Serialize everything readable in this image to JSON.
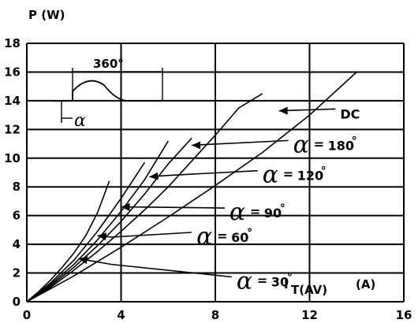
{
  "chart_data": {
    "type": "line",
    "ylabel": "P (W)",
    "xlabel_main": "I",
    "xlabel_sub": "T(AV)",
    "xlabel_unit": "(A)",
    "xlim": [
      0,
      16
    ],
    "ylim": [
      0,
      18
    ],
    "x_ticks": [
      "0",
      "4",
      "8",
      "12",
      "16"
    ],
    "y_ticks": [
      "0",
      "2",
      "4",
      "6",
      "8",
      "10",
      "12",
      "14",
      "16",
      "18"
    ],
    "grid": true,
    "series": [
      {
        "name": "30",
        "points": [
          [
            0,
            0
          ],
          [
            0.5,
            0.7
          ],
          [
            1,
            1.5
          ],
          [
            1.5,
            2.4
          ],
          [
            2,
            3.4
          ],
          [
            2.5,
            4.6
          ],
          [
            3,
            6.2
          ],
          [
            3.5,
            8.4
          ]
        ],
        "label": {
          "prefix": "α",
          "eq": "=",
          "value": "30",
          "deg": "°"
        }
      },
      {
        "name": "60",
        "points": [
          [
            0,
            0
          ],
          [
            1,
            1.3
          ],
          [
            2,
            2.9
          ],
          [
            3,
            4.9
          ],
          [
            4,
            7.2
          ],
          [
            5,
            9.7
          ]
        ],
        "label": {
          "prefix": "α",
          "eq": "=",
          "value": "60",
          "deg": "°"
        }
      },
      {
        "name": "90",
        "points": [
          [
            0,
            0
          ],
          [
            1,
            1.2
          ],
          [
            2,
            2.6
          ],
          [
            3,
            4.3
          ],
          [
            4,
            6.3
          ],
          [
            5,
            8.5
          ],
          [
            6,
            11.2
          ]
        ],
        "label": {
          "prefix": "α",
          "eq": "=",
          "value": "90",
          "deg": "°"
        }
      },
      {
        "name": "120",
        "points": [
          [
            0,
            0
          ],
          [
            1,
            1.1
          ],
          [
            2,
            2.4
          ],
          [
            3,
            3.9
          ],
          [
            4,
            5.6
          ],
          [
            5,
            7.5
          ],
          [
            6,
            9.6
          ],
          [
            7,
            11.4
          ]
        ],
        "label": {
          "prefix": "α",
          "eq": "=",
          "value": "120",
          "deg": "°"
        }
      },
      {
        "name": "180",
        "points": [
          [
            0,
            0
          ],
          [
            1,
            1.0
          ],
          [
            2,
            2.2
          ],
          [
            3,
            3.5
          ],
          [
            4,
            4.9
          ],
          [
            5,
            6.4
          ],
          [
            6,
            8.0
          ],
          [
            7,
            9.8
          ],
          [
            8,
            11.6
          ],
          [
            9,
            13.5
          ],
          [
            10,
            14.5
          ]
        ],
        "label": {
          "prefix": "α",
          "eq": "=",
          "value": "180",
          "deg": "°"
        }
      },
      {
        "name": "DC",
        "points": [
          [
            0,
            0
          ],
          [
            2,
            1.8
          ],
          [
            4,
            3.8
          ],
          [
            6,
            5.9
          ],
          [
            8,
            8.1
          ],
          [
            10,
            10.4
          ],
          [
            12,
            13.0
          ],
          [
            14,
            16.0
          ]
        ],
        "label": {
          "prefix": "",
          "eq": "",
          "value": "DC",
          "deg": ""
        }
      }
    ],
    "annotations": [
      {
        "for": "30",
        "label_x": 8.9,
        "label_y": 1.4,
        "arrow_to": [
          2.2,
          3.0
        ],
        "via": [
          3.6,
          2.6
        ]
      },
      {
        "for": "60",
        "label_x": 7.2,
        "label_y": 4.5,
        "arrow_to": [
          3.0,
          4.6
        ],
        "via": [
          3.6,
          4.5
        ]
      },
      {
        "for": "90",
        "label_x": 8.6,
        "label_y": 6.2,
        "arrow_to": [
          4.0,
          6.6
        ],
        "via": [
          4.5,
          6.6
        ]
      },
      {
        "for": "120",
        "label_x": 10.0,
        "label_y": 8.8,
        "arrow_to": [
          5.2,
          8.7
        ],
        "via": [
          6.0,
          8.8
        ]
      },
      {
        "for": "180",
        "label_x": 11.3,
        "label_y": 10.9,
        "arrow_to": [
          7.0,
          10.9
        ],
        "via": [
          7.0,
          10.9
        ]
      },
      {
        "for": "DC",
        "label_x": 13.3,
        "label_y": 13.1,
        "arrow_to": [
          10.7,
          13.3
        ],
        "via": [
          10.7,
          13.3
        ]
      }
    ],
    "inset": {
      "period_label": "360°",
      "angle_label": "α"
    }
  }
}
